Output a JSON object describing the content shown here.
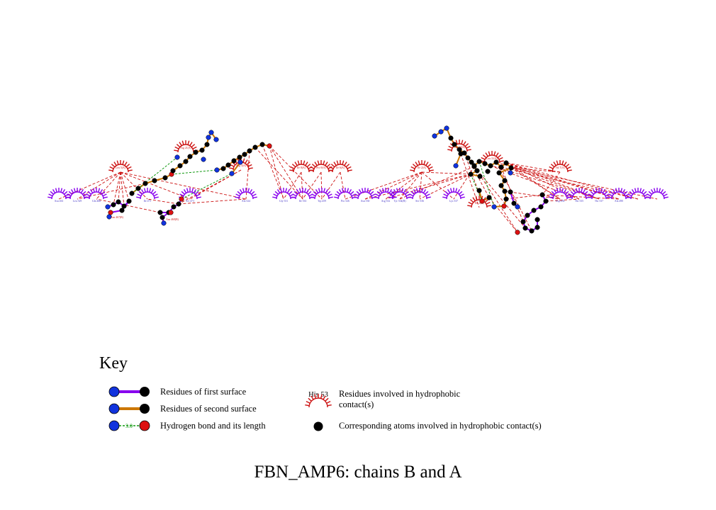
{
  "title": "FBN_AMP6: chains B and A",
  "key": {
    "heading": "Key",
    "first_surface": "Residues of first surface",
    "second_surface": "Residues of second surface",
    "hbond": "Hydrogen bond and its length",
    "hbond_length": "3.0",
    "hydrophobic_example": "His 53",
    "hydrophobic_residues_line1": "Residues involved in hydrophobic",
    "hydrophobic_residues_line2": "contact(s)",
    "hydrophobic_atoms": "Corresponding atoms involved in hydrophobic contact(s)"
  },
  "colors": {
    "first_surface": "#8800ee",
    "second_surface": "#cc7700",
    "hbond": "#119911",
    "hydrophobic": "#cc1111",
    "contact_line": "#cc1111",
    "atom_n": "#1133dd",
    "atom_o": "#dd1111",
    "atom_c": "#000000"
  },
  "residues_chain_a_hydrophobic": [
    {
      "label": "Leu 5(A)"
    },
    {
      "label": "Arg 21(A)"
    },
    {
      "label": "Arg 3(A)"
    },
    {
      "label": "Ile 8(A)"
    },
    {
      "label": "Pro 9(A)"
    },
    {
      "label": "Ile 6(A)"
    },
    {
      "label": "Ile 2(A)"
    },
    {
      "label": "Arg 10(A)"
    },
    {
      "label": "Leu 11(A)"
    },
    {
      "label": "Val 7(A)"
    },
    {
      "label": "Thr 4(A)"
    }
  ],
  "residues_chain_b_surface": [
    {
      "label": "Asn 461"
    },
    {
      "label": "Leu 529"
    },
    {
      "label": "Gln 466"
    },
    {
      "label": "Asn 467(B)"
    },
    {
      "label": "Ile 471"
    },
    {
      "label": "Asn 468(B)"
    },
    {
      "label": "Ser 473"
    },
    {
      "label": "Ala 524"
    },
    {
      "label": "Gly 531"
    },
    {
      "label": "Ile 533"
    },
    {
      "label": "Trp 459"
    },
    {
      "label": "Pro 526"
    },
    {
      "label": "Asn 530"
    },
    {
      "label": "Arg 532"
    },
    {
      "label": "Tyr 534(B)"
    },
    {
      "label": "Ser 536"
    },
    {
      "label": "Lys 537"
    },
    {
      "label": "Asp 456"
    },
    {
      "label": "Thr 535"
    },
    {
      "label": "Thr 537"
    },
    {
      "label": "Ala 490"
    }
  ]
}
